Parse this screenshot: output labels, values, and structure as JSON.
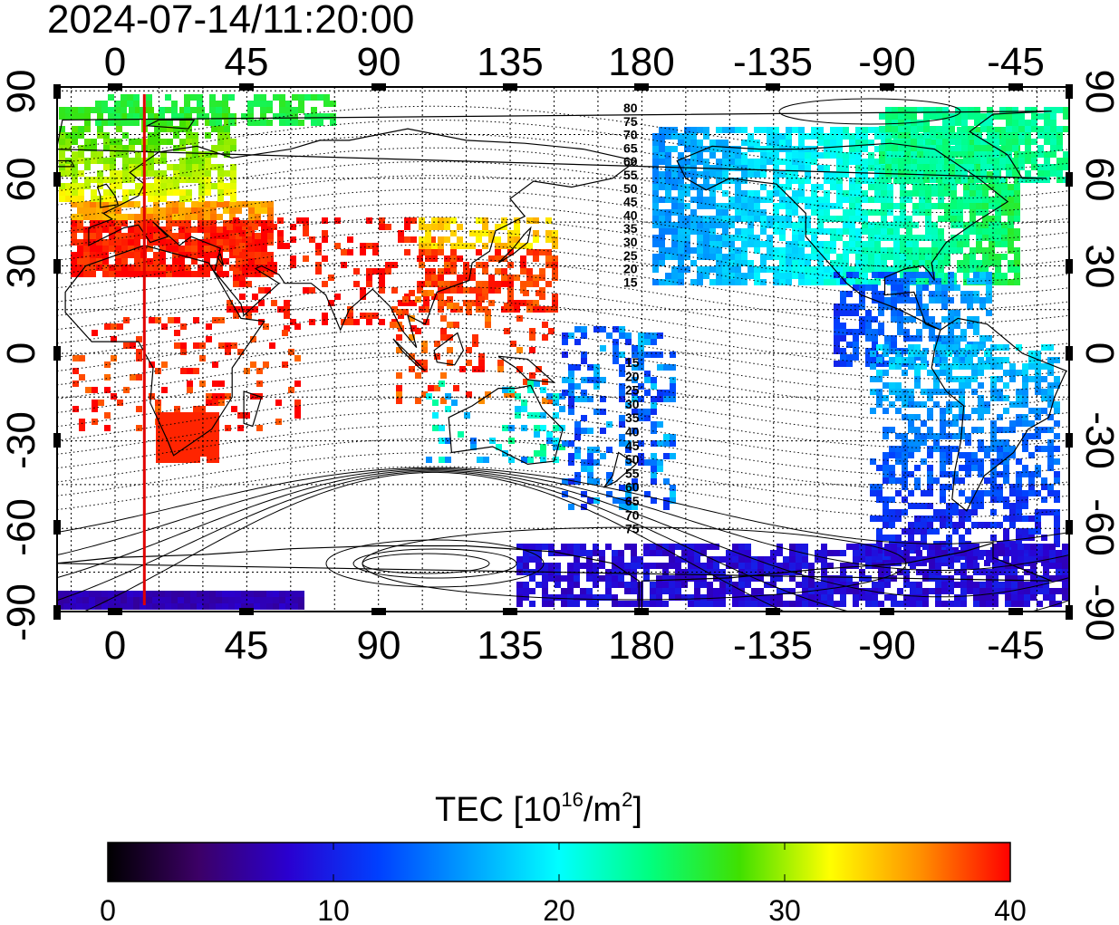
{
  "timestamp": "2024-07-14/11:20:00",
  "map": {
    "projection": "equirectangular",
    "lon_ticks": [
      "0",
      "45",
      "90",
      "135",
      "180",
      "-135",
      "-90",
      "-45"
    ],
    "lat_ticks": [
      "90",
      "60",
      "30",
      "0",
      "-30",
      "-60",
      "-90"
    ],
    "grid": "dotted every 15 degrees",
    "meridian_marker_lon": 10,
    "contour_labels_north": [
      "80",
      "75",
      "70",
      "65",
      "60",
      "55",
      "50",
      "45",
      "40",
      "35",
      "30",
      "25",
      "20",
      "15"
    ],
    "contour_labels_south": [
      "15",
      "20",
      "25",
      "30",
      "35",
      "40",
      "45",
      "50",
      "55",
      "60",
      "65",
      "70",
      "75"
    ],
    "colors": {
      "marker_line": "#e00000",
      "coast": "#000000",
      "grid": "#000000"
    }
  },
  "colorbar": {
    "title_main": "TEC  [10",
    "title_sup1": "16",
    "title_mid": "/m",
    "title_sup2": "2",
    "title_end": "]",
    "min": 0,
    "max": 40,
    "tick_labels": [
      "0",
      "10",
      "20",
      "30",
      "40"
    ],
    "colormap": [
      "#000000",
      "#3c0066",
      "#2a00d0",
      "#0040ff",
      "#00a0ff",
      "#00ffff",
      "#00ff80",
      "#40e000",
      "#ffff00",
      "#ff9000",
      "#ff0000"
    ]
  },
  "tec_regions": [
    {
      "name": "europe",
      "level": 38
    },
    {
      "name": "scandinavia",
      "level": 26
    },
    {
      "name": "east-asia",
      "level": 35
    },
    {
      "name": "north-america",
      "level": 20
    },
    {
      "name": "south-america",
      "level": 8
    },
    {
      "name": "antarctic",
      "level": 7
    },
    {
      "name": "southern-africa",
      "level": 39
    }
  ]
}
